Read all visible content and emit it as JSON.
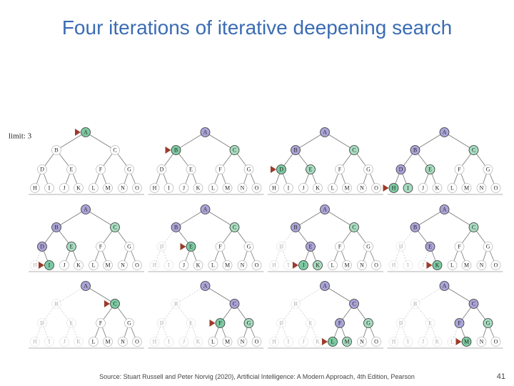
{
  "title": "Four iterations of iterative deepening search",
  "limit_label": "limit: 3",
  "nodes": [
    "A",
    "B",
    "C",
    "D",
    "E",
    "F",
    "G",
    "H",
    "I",
    "J",
    "K",
    "L",
    "M",
    "N",
    "O"
  ],
  "source": "Source: Stuart Russell and Peter Norvig (2020), Artificial Intelligence: A Modern Approach, 4th Edition, Pearson",
  "page_number": "41"
}
